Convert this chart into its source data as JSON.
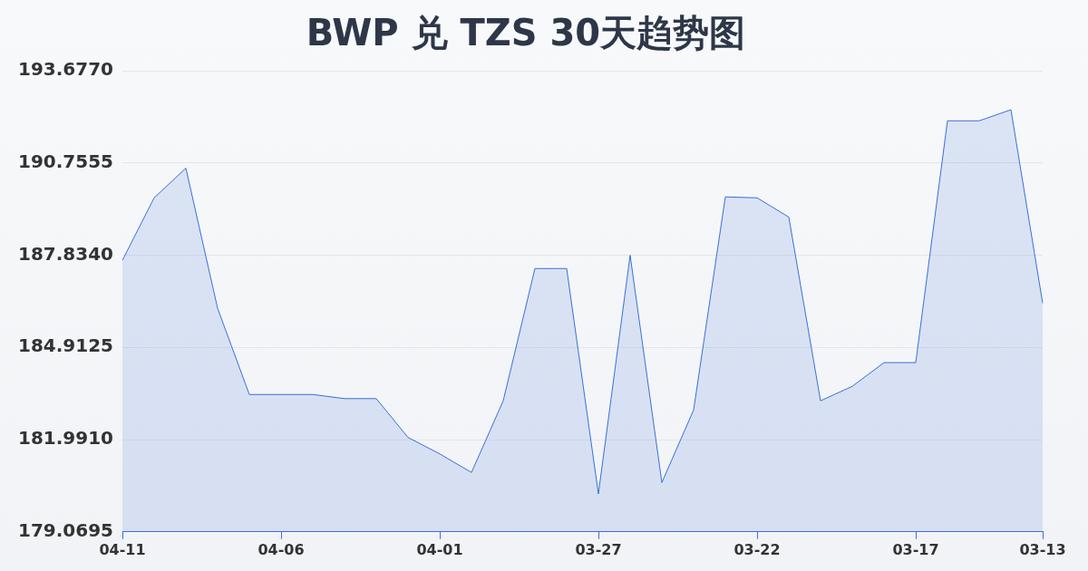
{
  "chart_data": {
    "type": "area",
    "title": "BWP 兑 TZS 30天趋势图",
    "categories": [
      "04-11",
      null,
      null,
      null,
      null,
      "04-06",
      null,
      null,
      null,
      null,
      "04-01",
      null,
      null,
      null,
      null,
      "03-27",
      null,
      null,
      null,
      null,
      "03-22",
      null,
      null,
      null,
      null,
      "03-17",
      null,
      null,
      null,
      "03-13"
    ],
    "series": [
      {
        "color": "#3a6fd8",
        "values": [
          187.67,
          189.65,
          190.59,
          186.15,
          183.42,
          183.42,
          183.42,
          183.29,
          183.29,
          182.06,
          181.54,
          180.95,
          183.22,
          187.41,
          187.41,
          180.27,
          187.83,
          180.63,
          182.93,
          189.68,
          189.65,
          189.04,
          183.22,
          183.68,
          184.43,
          184.43,
          192.09,
          192.09,
          192.44,
          186.31
        ]
      }
    ],
    "ylim": [
      179.0695,
      193.677
    ],
    "yticks": [
      {
        "value": 179.0695,
        "label": "179.0695"
      },
      {
        "value": 181.991,
        "label": "181.9910"
      },
      {
        "value": 184.9125,
        "label": "184.9125"
      },
      {
        "value": 187.834,
        "label": "187.8340"
      },
      {
        "value": 190.7555,
        "label": "190.7555"
      },
      {
        "value": 193.677,
        "label": "193.6770"
      }
    ],
    "grid": "y",
    "legend": false,
    "marker": "none"
  }
}
